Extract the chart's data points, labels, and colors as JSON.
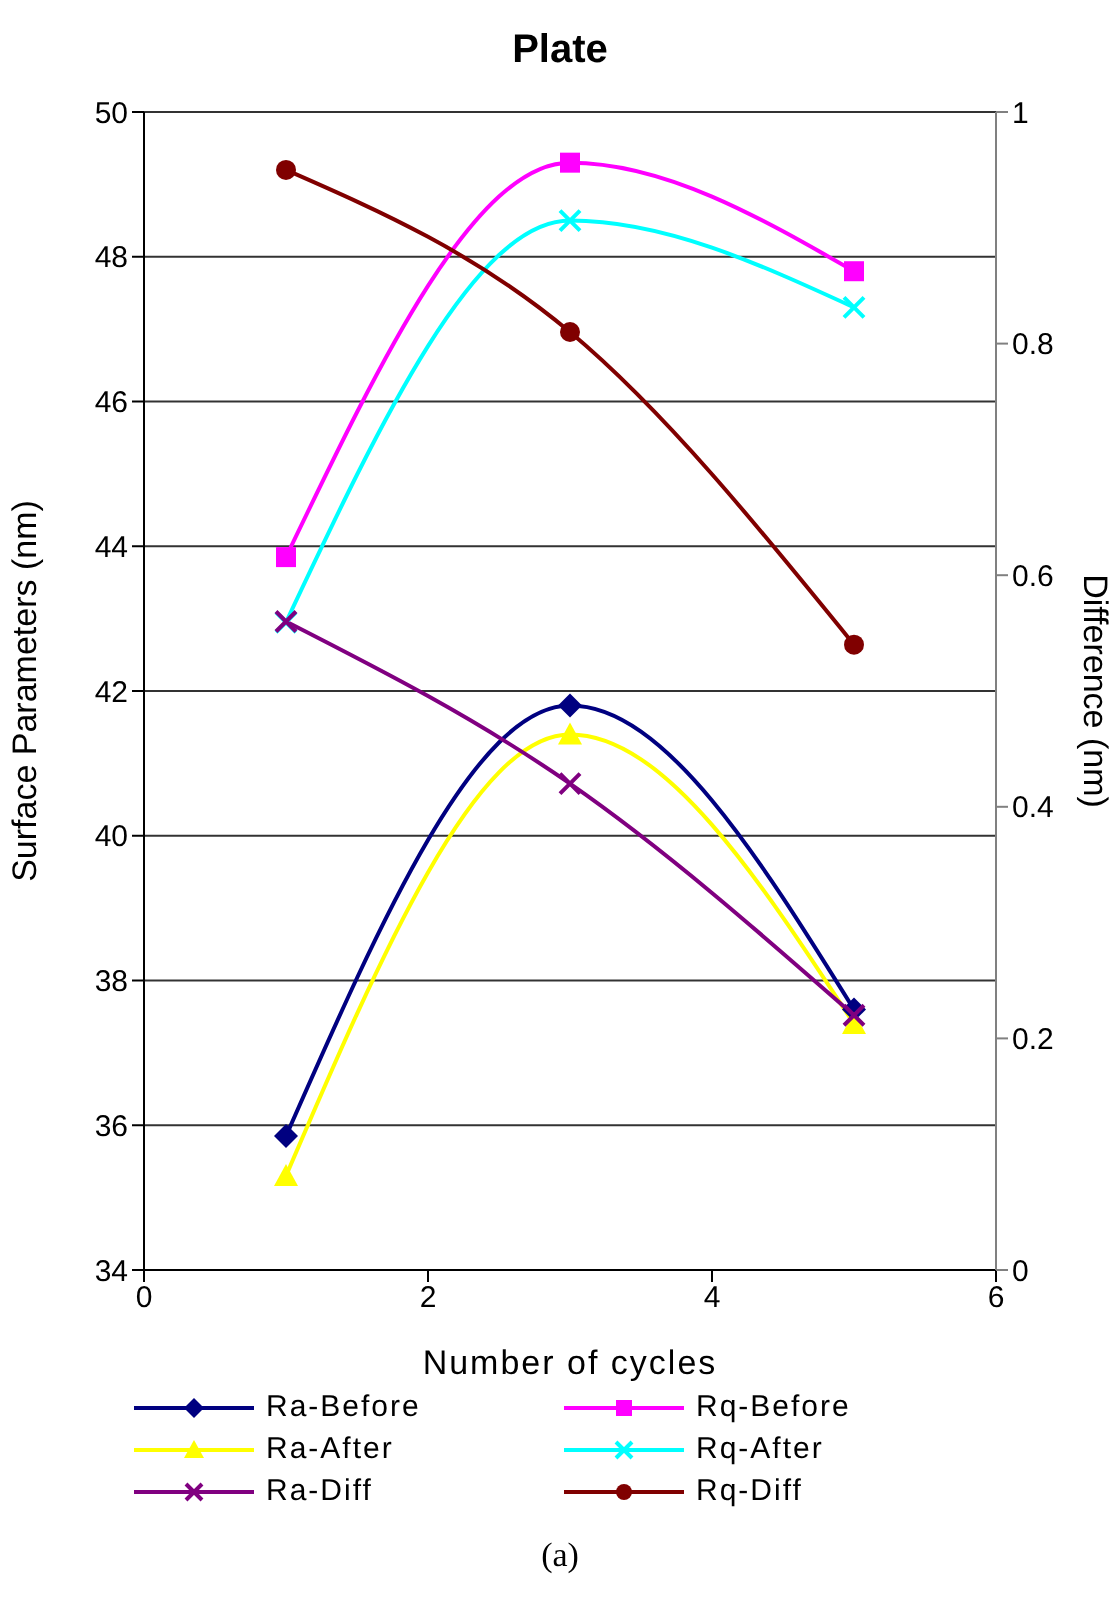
{
  "chart_data": {
    "type": "line",
    "title": "Plate",
    "xlabel": "Number of cycles",
    "ylabel": "Surface Parameters (nm)",
    "y2label": "Difference (nm)",
    "x": [
      1,
      3,
      5
    ],
    "series": [
      {
        "name": "Ra-Before",
        "color": "#000080",
        "marker": "diamond",
        "values": [
          35.85,
          41.8,
          37.6
        ]
      },
      {
        "name": "Rq-Before",
        "color": "#ff00ff",
        "marker": "square",
        "values": [
          43.85,
          49.3,
          47.8
        ]
      },
      {
        "name": "Ra-After",
        "color": "#ffff00",
        "marker": "triangle",
        "values": [
          35.3,
          41.4,
          37.4
        ]
      },
      {
        "name": "Rq-After",
        "color": "#00ffff",
        "marker": "cross",
        "values": [
          42.95,
          48.5,
          47.3
        ]
      },
      {
        "name": "Ra-Diff",
        "color": "#800080",
        "marker": "cross",
        "axis": "y2",
        "values": [
          0.56,
          0.42,
          0.22
        ]
      },
      {
        "name": "Rq-Diff",
        "color": "#800000",
        "marker": "circle",
        "axis": "y2",
        "values": [
          0.95,
          0.81,
          0.54
        ]
      }
    ],
    "xlim": [
      0,
      6
    ],
    "xticks": [
      0,
      2,
      4,
      6
    ],
    "ylim": [
      34,
      50
    ],
    "yticks": [
      34,
      36,
      38,
      40,
      42,
      44,
      46,
      48,
      50
    ],
    "y2lim": [
      0,
      1
    ],
    "y2ticks": [
      0,
      0.2,
      0.4,
      0.6,
      0.8,
      1
    ],
    "grid": "y",
    "legend": "bottom",
    "line_style": "solid",
    "annotations": [
      "(a)"
    ]
  }
}
